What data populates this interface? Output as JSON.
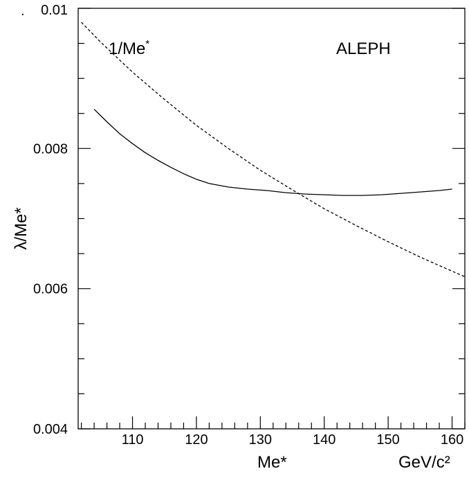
{
  "chart_data": {
    "type": "line",
    "title": "",
    "xlabel": "Me*",
    "xunit": "GeV/c²",
    "ylabel": "λ/Me*",
    "xlim": [
      101.5,
      162
    ],
    "ylim": [
      0.004,
      0.01
    ],
    "x_ticks": [
      110,
      120,
      130,
      140,
      150,
      160
    ],
    "x_tick_labels": [
      "110",
      "120",
      "130",
      "140",
      "150",
      "160"
    ],
    "y_ticks": [
      0.004,
      0.006,
      0.008,
      0.01
    ],
    "y_tick_labels": [
      "0.004",
      "0.006",
      "0.008",
      "0.01"
    ],
    "grid": false,
    "annotations": {
      "curve_label": "1/Me",
      "curve_label_sup": "*",
      "experiment": "ALEPH",
      "corner_dot": "."
    },
    "series": [
      {
        "name": "",
        "style": "solid",
        "x": [
          104,
          106,
          108,
          110,
          112,
          114,
          116,
          118,
          120,
          122,
          125,
          128,
          131,
          134,
          137,
          140,
          143,
          146,
          149,
          152,
          155,
          158,
          160
        ],
        "y": [
          0.00856,
          0.00838,
          0.00821,
          0.00807,
          0.00794,
          0.00783,
          0.00773,
          0.00764,
          0.00756,
          0.0075,
          0.00745,
          0.00742,
          0.0074,
          0.00737,
          0.00735,
          0.00734,
          0.00733,
          0.00733,
          0.00734,
          0.00736,
          0.00738,
          0.0074,
          0.00742
        ]
      },
      {
        "name": "1/Me*",
        "style": "dashed",
        "x": [
          102,
          105,
          110,
          115,
          120,
          125,
          130,
          135,
          140,
          145,
          150,
          155,
          160,
          162
        ],
        "y": [
          0.0098,
          0.00952,
          0.00909,
          0.0087,
          0.00833,
          0.008,
          0.00769,
          0.00741,
          0.00714,
          0.0069,
          0.00667,
          0.00645,
          0.00625,
          0.00617
        ]
      }
    ]
  }
}
